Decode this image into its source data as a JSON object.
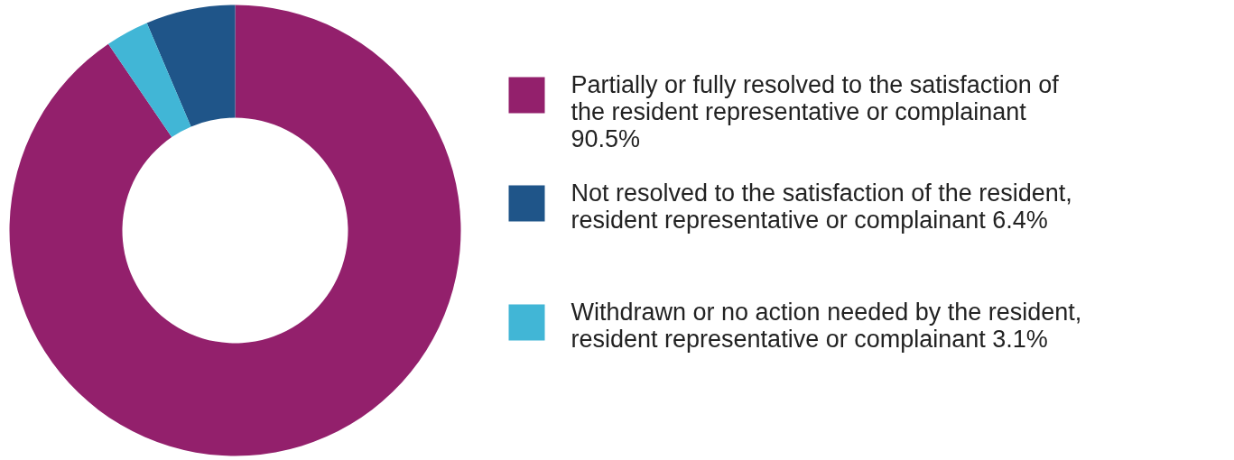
{
  "chart_data": {
    "type": "donut",
    "categories": [
      "Partially or fully resolved to the satisfaction of the resident representative or complainant",
      "Not resolved to the satisfaction of the resident, resident representative or complainant",
      "Withdrawn or no action needed by the resident, resident representative or complainant"
    ],
    "values": [
      90.5,
      6.4,
      3.1
    ],
    "value_labels": [
      "90.5%",
      "6.4%",
      "3.1%"
    ],
    "colors": [
      "#93206c",
      "#1f5589",
      "#41b6d6"
    ],
    "legend": "right"
  }
}
